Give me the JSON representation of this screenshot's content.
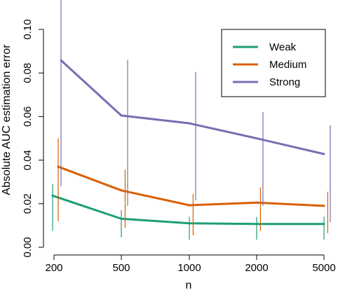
{
  "chart_data": {
    "type": "line",
    "title": "",
    "xlabel": "n",
    "ylabel": "Absolute AUC estimation error",
    "x_ticks": [
      "200",
      "500",
      "1000",
      "2000",
      "5000"
    ],
    "y_ticks": [
      "0.00",
      "0.02",
      "0.04",
      "0.06",
      "0.08",
      "0.10"
    ],
    "ylim": [
      0.0,
      0.1
    ],
    "grid": false,
    "legend_position": "top-right",
    "series": [
      {
        "name": "Weak",
        "color": "#1b9e77",
        "values": [
          0.0237,
          0.0131,
          0.011,
          0.0107,
          0.0107
        ],
        "ranges": [
          [
            0.0075,
            0.029
          ],
          [
            0.0045,
            0.017
          ],
          [
            0.0035,
            0.014
          ],
          [
            0.0035,
            0.014
          ],
          [
            0.0035,
            0.014
          ]
        ]
      },
      {
        "name": "Medium",
        "color": "#d95f02",
        "values": [
          0.037,
          0.0261,
          0.0193,
          0.0205,
          0.019
        ],
        "ranges": [
          [
            0.012,
            0.05
          ],
          [
            0.009,
            0.0355
          ],
          [
            0.0055,
            0.0245
          ],
          [
            0.0075,
            0.0275
          ],
          [
            0.0065,
            0.0255
          ]
        ]
      },
      {
        "name": "Strong",
        "color": "#7570b3",
        "values": [
          0.0858,
          0.0605,
          0.0569,
          0.05,
          0.0428
        ],
        "ranges": [
          [
            0.028,
            0.125
          ],
          [
            0.019,
            0.086
          ],
          [
            0.0215,
            0.0805
          ],
          [
            0.019,
            0.062
          ],
          [
            0.0115,
            0.056
          ]
        ]
      }
    ]
  }
}
